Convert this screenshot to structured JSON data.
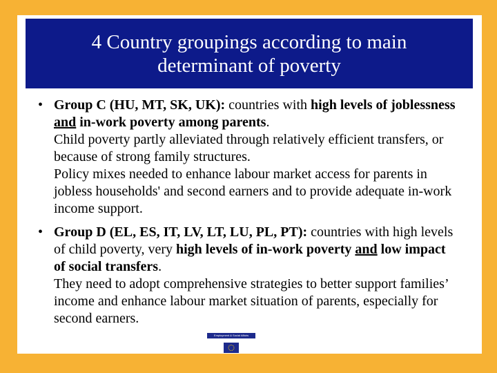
{
  "header": {
    "title_lines": [
      "4 Country groupings according to main",
      "determinant of poverty"
    ]
  },
  "bullets": [
    {
      "paragraphs": [
        [
          "Group C (HU, MT, SK, UK):",
          " countries with ",
          "high levels of joblessness ",
          "and",
          " in-work poverty among parents",
          "."
        ],
        [
          "Child poverty partly alleviated through relatively efficient transfers, or because of strong family structures."
        ],
        [
          "Policy mixes needed to enhance labour market access for parents in jobless households' and second earners and to provide adequate in-work income support."
        ]
      ]
    },
    {
      "paragraphs": [
        [
          "Group D (EL, ES, IT, LV, LT, LU, PL, PT):",
          " countries with high levels of child poverty, very ",
          "high levels of in-work poverty ",
          "and",
          " low impact of social transfers",
          "."
        ],
        [
          "They need to adopt comprehensive strategies to better support families’ income and enhance labour market situation of parents, especially for second earners."
        ]
      ]
    }
  ],
  "footer": {
    "label": "Employment & Social Affairs"
  }
}
